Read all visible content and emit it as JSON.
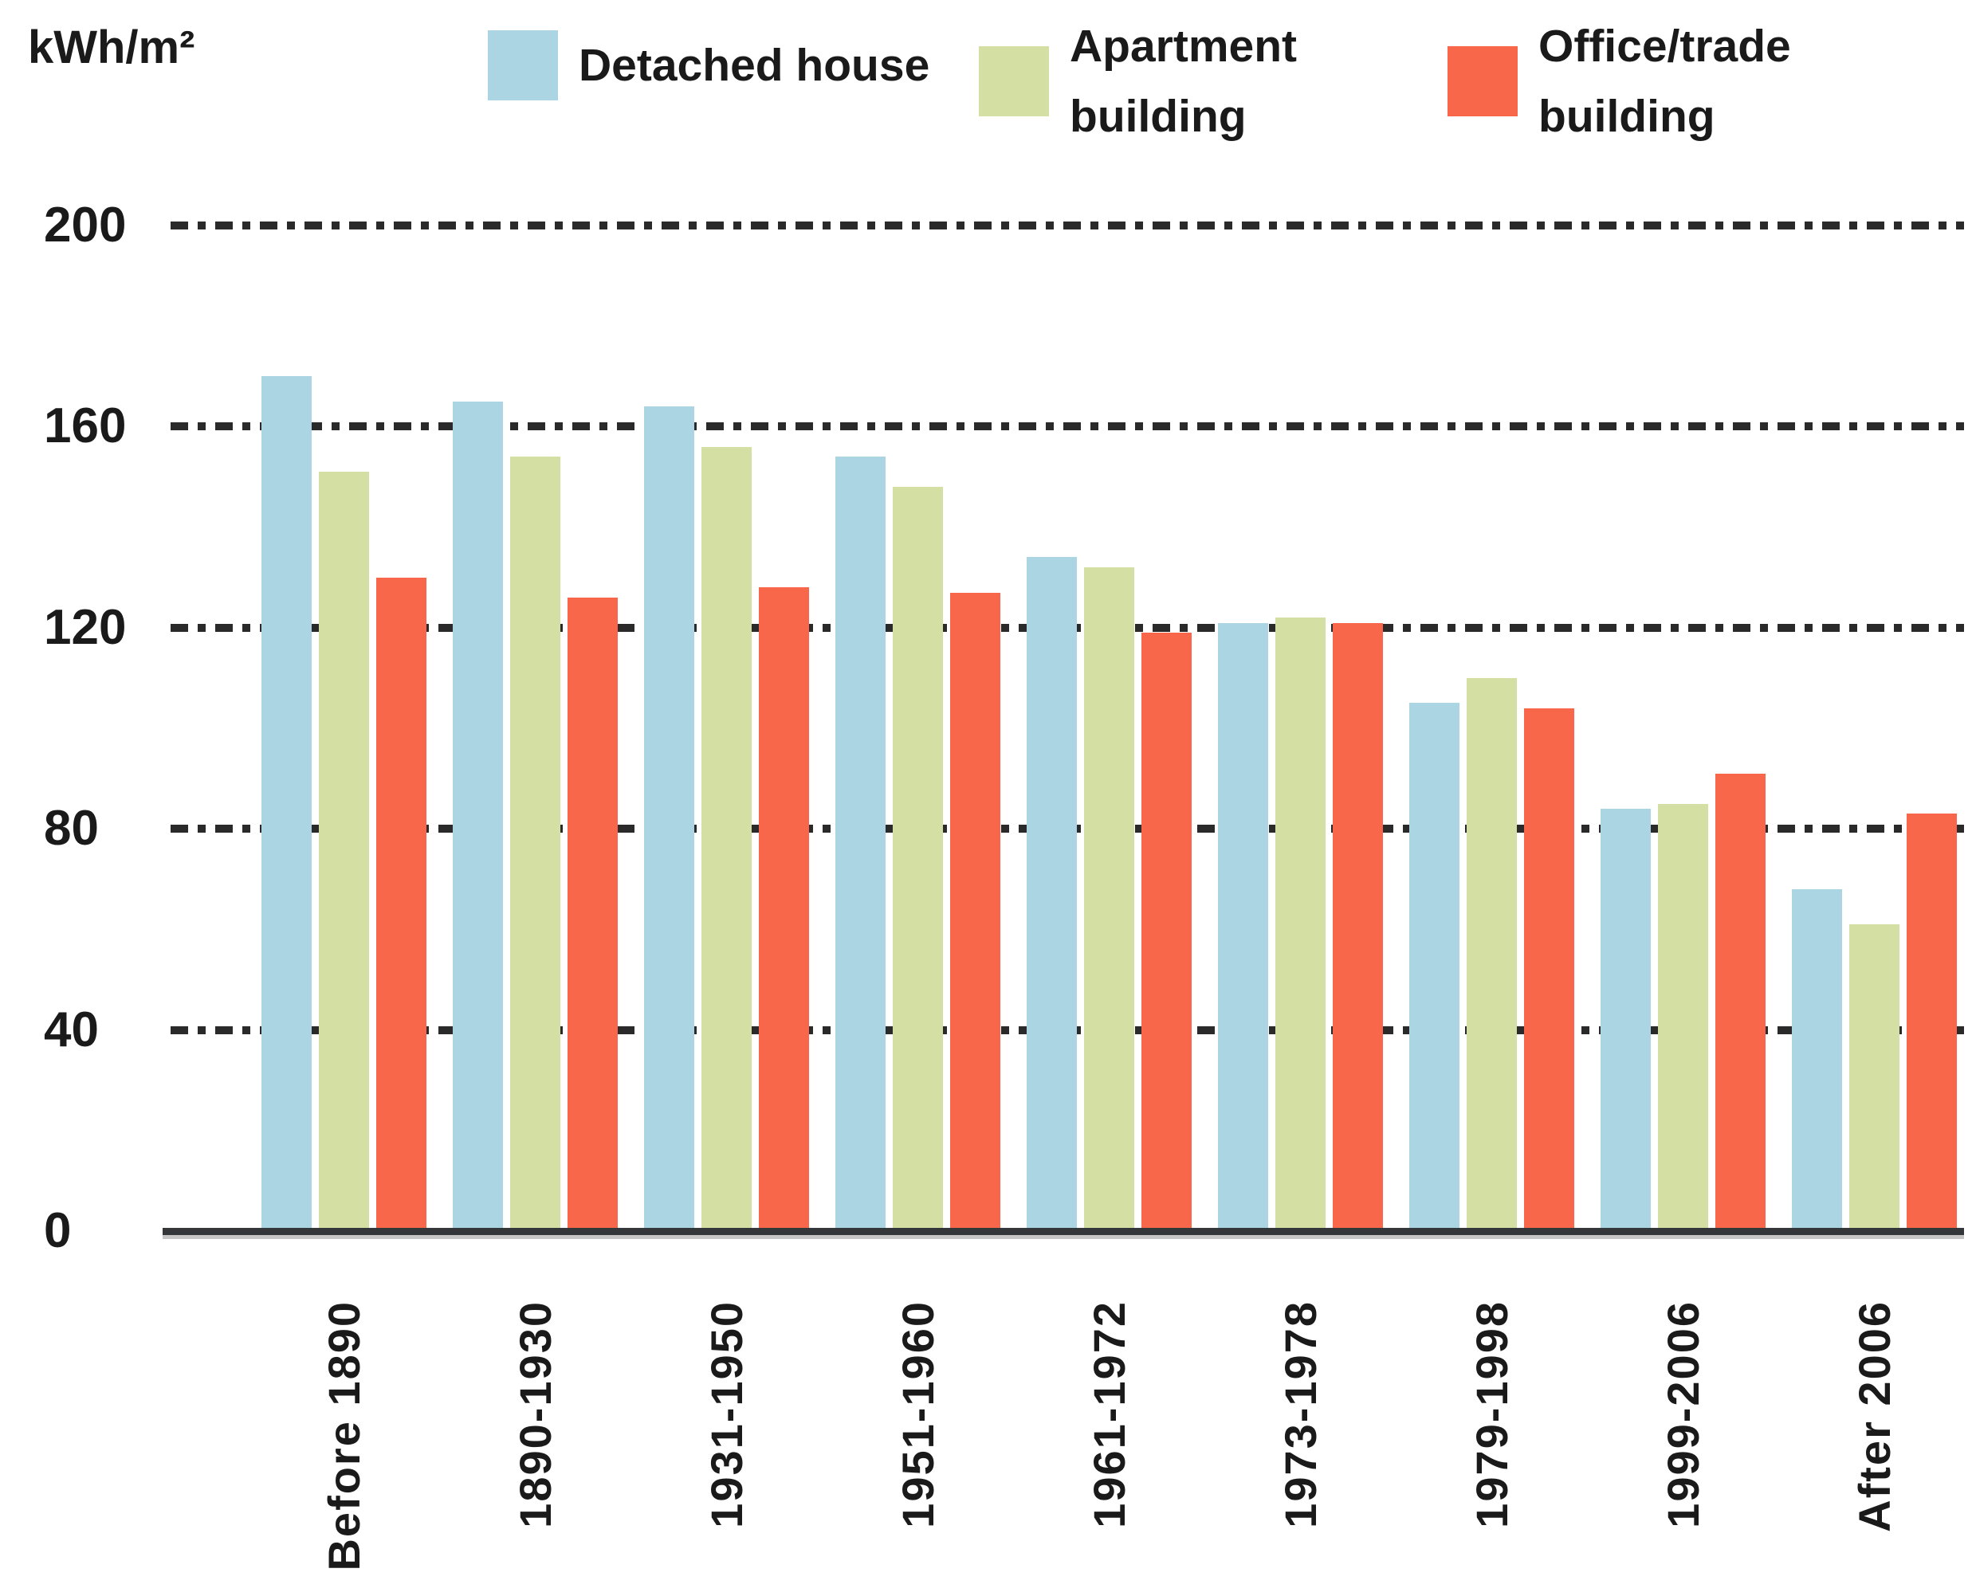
{
  "chart": {
    "unit_label": "kWh/m²",
    "y_ticks": [
      "200",
      "160",
      "120",
      "80",
      "40",
      "0"
    ]
  },
  "legend": {
    "items": [
      {
        "label": "Detached house",
        "color": "#acd5e4"
      },
      {
        "label": "Apartment building",
        "color": "#d3dfa3"
      },
      {
        "label": "Office/trade building",
        "color": "#f8674a"
      }
    ]
  },
  "chart_data": {
    "type": "bar",
    "title": "",
    "xlabel": "",
    "ylabel": "kWh/m²",
    "ylim": [
      0,
      200
    ],
    "y_tick_step": 40,
    "grid": "horizontal dash-dot lines at each y tick",
    "legend_position": "top",
    "bar_value_axis": "kWh/m²",
    "categories": [
      "Before 1890",
      "1890-1930",
      "1931-1950",
      "1951-1960",
      "1961-1972",
      "1973-1978",
      "1979-1998",
      "1999-2006",
      "After 2006"
    ],
    "series": [
      {
        "name": "Detached house",
        "color": "#acd5e4",
        "values": [
          170,
          165,
          164,
          154,
          134,
          121,
          105,
          84,
          68
        ]
      },
      {
        "name": "Apartment building",
        "color": "#d3dfa3",
        "values": [
          151,
          154,
          156,
          148,
          132,
          122,
          110,
          85,
          61
        ]
      },
      {
        "name": "Office/trade building",
        "color": "#f8674a",
        "values": [
          130,
          126,
          128,
          127,
          119,
          121,
          104,
          91,
          83
        ]
      }
    ]
  }
}
